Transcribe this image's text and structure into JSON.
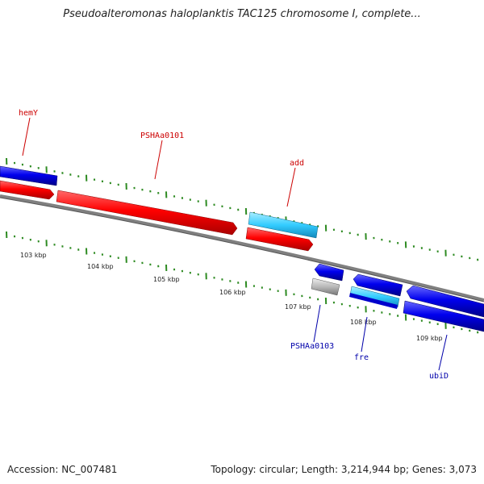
{
  "title": "Pseudoalteromonas haloplanktis TAC125 chromosome I, complete...",
  "footer": {
    "accession": "Accession: NC_007481",
    "summary": "Topology: circular; Length: 3,214,944 bp; Genes: 3,073"
  },
  "colors": {
    "background": "#ffffff",
    "backbone": "#808080",
    "tick": "#2e8b22",
    "gene_red": "#ff0000",
    "gene_blue": "#0000ee",
    "gene_cyan": "#33ccff",
    "gene_gray": "#b8b8b8",
    "label_red": "#cc0000",
    "label_blue": "#0000aa"
  },
  "scale_labels": [
    "103 kbp",
    "104 kbp",
    "105 kbp",
    "106 kbp",
    "107 kbp",
    "108 kbp",
    "109 kbp"
  ],
  "genes": [
    {
      "name": "hemY",
      "strand": "forward",
      "color": "blue"
    },
    {
      "name": "",
      "strand": "forward",
      "color": "red"
    },
    {
      "name": "PSHAa0101",
      "strand": "forward",
      "color": "red"
    },
    {
      "name": "add",
      "strand": "forward",
      "color": "cyan"
    },
    {
      "name": "",
      "strand": "forward",
      "color": "red"
    },
    {
      "name": "",
      "strand": "reverse",
      "color": "blue"
    },
    {
      "name": "PSHAa0103",
      "strand": "reverse",
      "color": "gray"
    },
    {
      "name": "",
      "strand": "reverse",
      "color": "blue"
    },
    {
      "name": "fre",
      "strand": "reverse",
      "color": "cyan"
    },
    {
      "name": "",
      "strand": "reverse",
      "color": "blue"
    },
    {
      "name": "ubiD",
      "strand": "reverse",
      "color": "blue"
    }
  ],
  "labels": [
    {
      "text": "hemY",
      "color": "red"
    },
    {
      "text": "PSHAa0101",
      "color": "red"
    },
    {
      "text": "add",
      "color": "red"
    },
    {
      "text": "PSHAa0103",
      "color": "blue"
    },
    {
      "text": "fre",
      "color": "blue"
    },
    {
      "text": "ubiD",
      "color": "blue"
    }
  ]
}
